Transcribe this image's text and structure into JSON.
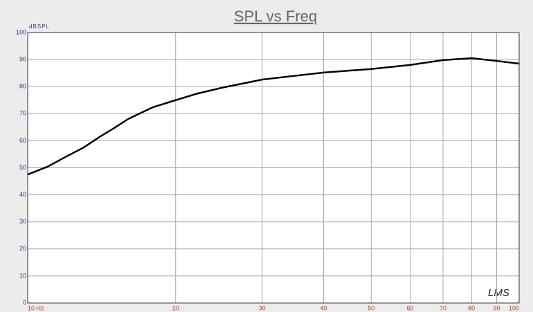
{
  "chart_data": {
    "type": "line",
    "title": "SPL vs Freq",
    "y_label": "dBSPL",
    "logo": "LMS",
    "x": [
      10,
      11,
      12,
      13,
      14,
      15,
      16,
      17,
      18,
      20,
      22,
      25,
      28,
      30,
      35,
      40,
      50,
      60,
      70,
      80,
      90,
      100
    ],
    "values": [
      47.5,
      50.5,
      54.2,
      57.5,
      61.4,
      64.7,
      68,
      70.3,
      72.4,
      75,
      77.3,
      79.7,
      81.5,
      82.6,
      84,
      85.2,
      86.5,
      88,
      89.8,
      90.5,
      89.5,
      88.5
    ],
    "color": "#000000",
    "xlim": [
      10,
      100
    ],
    "xscale": "log",
    "xticks": [
      {
        "value": 10,
        "label": "10 Hz"
      },
      20,
      30,
      40,
      50,
      60,
      70,
      80,
      90,
      100
    ],
    "ylim": [
      0,
      100
    ],
    "yticks": [
      0,
      10,
      20,
      30,
      40,
      50,
      60,
      70,
      80,
      90,
      100
    ],
    "grid": true
  }
}
